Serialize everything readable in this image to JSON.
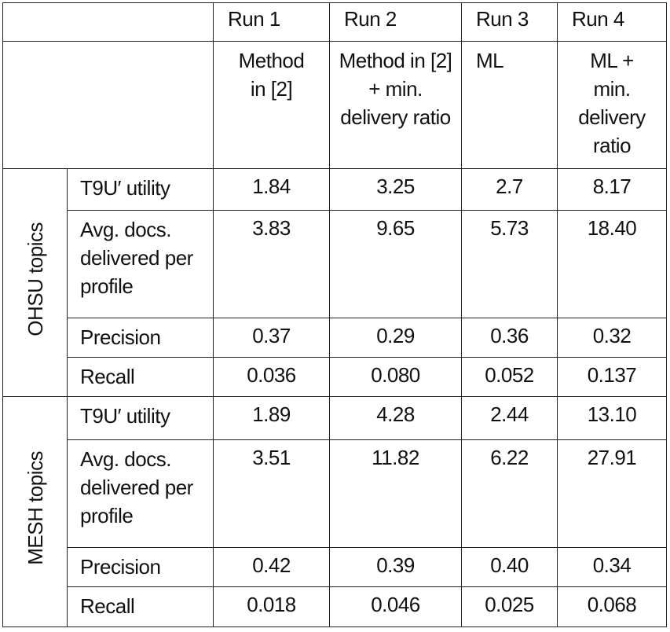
{
  "table": {
    "runs": [
      "Run 1",
      "Run 2",
      "Run 3",
      "Run 4"
    ],
    "methods": [
      "Method in [2]",
      "Method in [2] + min. delivery ratio",
      "ML",
      "ML + min. delivery ratio"
    ],
    "groups": [
      {
        "label": "OHSU topics",
        "rows": [
          {
            "metric": "T9U′ utility",
            "values": [
              "1.84",
              "3.25",
              "2.7",
              "8.17"
            ]
          },
          {
            "metric": "Avg. docs. delivered per profile",
            "values": [
              "3.83",
              "9.65",
              "5.73",
              "18.40"
            ]
          },
          {
            "metric": "Precision",
            "values": [
              "0.37",
              "0.29",
              "0.36",
              "0.32"
            ]
          },
          {
            "metric": "Recall",
            "values": [
              "0.036",
              "0.080",
              "0.052",
              "0.137"
            ]
          }
        ]
      },
      {
        "label": "MESH topics",
        "rows": [
          {
            "metric": "T9U′ utility",
            "values": [
              "1.89",
              "4.28",
              "2.44",
              "13.10"
            ]
          },
          {
            "metric": "Avg. docs. delivered per profile",
            "values": [
              "3.51",
              "11.82",
              "6.22",
              "27.91"
            ]
          },
          {
            "metric": "Precision",
            "values": [
              "0.42",
              "0.39",
              "0.40",
              "0.34"
            ]
          },
          {
            "metric": "Recall",
            "values": [
              "0.018",
              "0.046",
              "0.025",
              "0.068"
            ]
          }
        ]
      }
    ]
  }
}
